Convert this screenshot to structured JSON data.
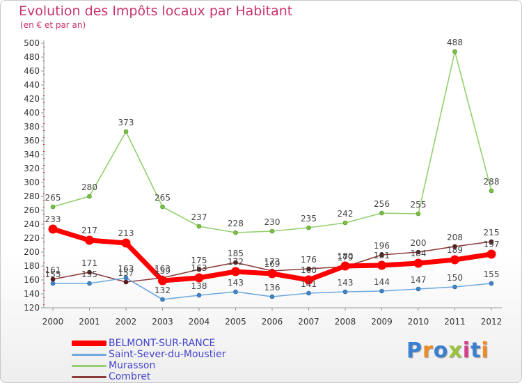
{
  "title": "Evolution des Impôts locaux par Habitant",
  "subtitle": "(en € et par an)",
  "logo": {
    "text": "Proxiti",
    "colors": [
      "#3a7fd0",
      "#f08c28",
      "#3a7fd0",
      "#9bc43c",
      "#d83c8c",
      "#3a7fd0",
      "#f08c28"
    ]
  },
  "chart_data": {
    "type": "line",
    "title": "Evolution des Impôts locaux par Habitant",
    "subtitle": "(en € et par an)",
    "xlabel": "",
    "ylabel": "",
    "ylim": [
      120,
      500
    ],
    "yticks": [
      120,
      140,
      160,
      180,
      200,
      220,
      240,
      260,
      280,
      300,
      320,
      340,
      360,
      380,
      400,
      420,
      440,
      460,
      480,
      500
    ],
    "grid": false,
    "legend": "bottom-left",
    "x": [
      "2000",
      "2001",
      "2002",
      "2003",
      "2004",
      "2005",
      "2006",
      "2007",
      "2008",
      "2009",
      "2010",
      "2011",
      "2012"
    ],
    "series": [
      {
        "name": "BELMONT-SUR-RANCE",
        "color": "#ff0000",
        "marker_color": "#ff0000",
        "values": [
          233,
          217,
          213,
          159,
          163,
          172,
          169,
          160,
          180,
          181,
          184,
          189,
          197
        ],
        "labels": [
          "233",
          "217",
          "213",
          "159",
          "163",
          "172",
          "169",
          "160",
          "180",
          "181",
          "184",
          "189",
          "197"
        ]
      },
      {
        "name": "Saint-Sever-du-Moustier",
        "color": "#6fa8dc",
        "marker_color": "#3d85c6",
        "values": [
          155,
          155,
          163,
          132,
          138,
          143,
          136,
          141,
          143,
          144,
          147,
          150,
          155
        ],
        "labels": [
          "155",
          "155",
          "163",
          "132",
          "138",
          "143",
          "136",
          "141",
          "143",
          "144",
          "147",
          "150",
          "155"
        ]
      },
      {
        "name": "Murasson",
        "color": "#93cf6e",
        "marker_color": "#7ac143",
        "values": [
          265,
          280,
          373,
          265,
          237,
          228,
          230,
          235,
          242,
          256,
          255,
          488,
          288
        ],
        "labels": [
          "265",
          "280",
          "373",
          "265",
          "237",
          "228",
          "230",
          "235",
          "242",
          "256",
          "255",
          "488",
          "288"
        ]
      },
      {
        "name": "Combret",
        "color": "#8b3a3a",
        "marker_color": "#5c1a1a",
        "values": [
          161,
          171,
          157,
          163,
          175,
          185,
          173,
          176,
          179,
          196,
          200,
          208,
          215
        ],
        "labels": [
          "161",
          "171",
          "157",
          "163",
          "175",
          "185",
          "173",
          "176",
          "179",
          "196",
          "200",
          "208",
          "215"
        ]
      }
    ]
  }
}
